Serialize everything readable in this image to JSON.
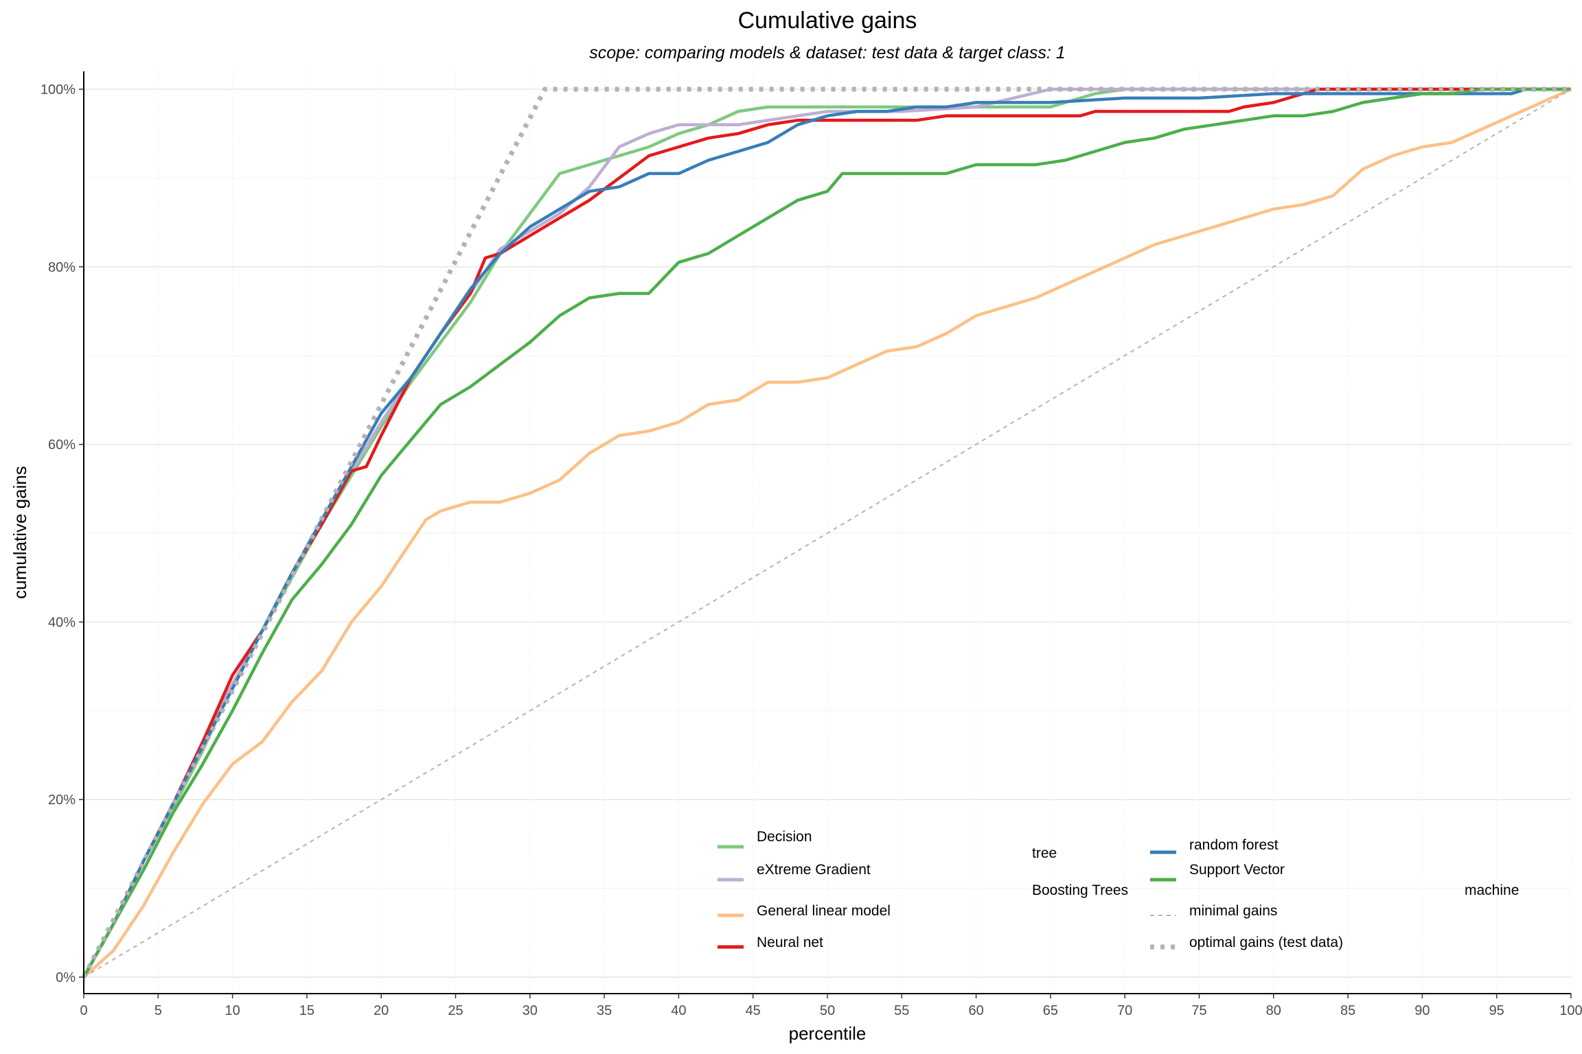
{
  "chart_data": {
    "type": "line",
    "title": "Cumulative gains",
    "subtitle": "scope: comparing models & dataset: test data & target class: 1",
    "xlabel": "percentile",
    "ylabel": "cumulative gains",
    "xlim": [
      0,
      100
    ],
    "ylim": [
      0,
      1
    ],
    "x_ticks": [
      0,
      5,
      10,
      15,
      20,
      25,
      30,
      35,
      40,
      45,
      50,
      55,
      60,
      65,
      70,
      75,
      80,
      85,
      90,
      95,
      100
    ],
    "x_tick_labels": [
      "0",
      "5",
      "10",
      "15",
      "20",
      "25",
      "30",
      "35",
      "40",
      "45",
      "50",
      "55",
      "60",
      "65",
      "70",
      "75",
      "80",
      "85",
      "90",
      "95",
      "100"
    ],
    "y_ticks": [
      0,
      0.2,
      0.4,
      0.6,
      0.8,
      1.0
    ],
    "y_tick_labels": [
      "0%",
      "20%",
      "40%",
      "60%",
      "80%",
      "100%"
    ],
    "grid": true,
    "legend_position": "bottom-right inside",
    "legend_text": [
      {
        "text": "Decision",
        "col": 0,
        "row": 0
      },
      {
        "text": "tree",
        "col": 1,
        "row": 0.5
      },
      {
        "text": "eXtreme Gradient",
        "col": 0,
        "row": 1
      },
      {
        "text": "Boosting Trees",
        "col": 1,
        "row": 1.5
      },
      {
        "text": "General linear model",
        "col": 0,
        "row": 2
      },
      {
        "text": "Neural net",
        "col": 0,
        "row": 3
      },
      {
        "text": "random forest",
        "col": 2,
        "row": 0.25
      },
      {
        "text": "Support Vector",
        "col": 2,
        "row": 1
      },
      {
        "text": "machine",
        "col": 3,
        "row": 1.5
      },
      {
        "text": "minimal gains",
        "col": 2,
        "row": 2
      },
      {
        "text": "optimal gains (test data)",
        "col": 2,
        "row": 3
      }
    ],
    "series": [
      {
        "name": "Decision tree",
        "color": "#7fc97f",
        "style": "solid",
        "x": [
          0,
          2,
          4,
          6,
          8,
          10,
          12,
          14,
          16,
          18,
          20,
          22,
          24,
          26,
          28,
          30,
          32,
          34,
          36,
          38,
          40,
          42,
          44,
          46,
          48,
          50,
          55,
          60,
          65,
          68,
          70,
          75,
          80,
          85,
          90,
          95,
          100
        ],
        "y": [
          0,
          0.06,
          0.13,
          0.19,
          0.255,
          0.33,
          0.39,
          0.45,
          0.51,
          0.565,
          0.62,
          0.67,
          0.715,
          0.76,
          0.815,
          0.86,
          0.905,
          0.915,
          0.925,
          0.935,
          0.95,
          0.96,
          0.975,
          0.98,
          0.98,
          0.98,
          0.98,
          0.98,
          0.98,
          0.995,
          1,
          1,
          1,
          1,
          1,
          1,
          1
        ]
      },
      {
        "name": "eXtreme Gradient Boosting Trees",
        "color": "#beaed4",
        "style": "solid",
        "x": [
          0,
          2,
          4,
          6,
          8,
          10,
          12,
          14,
          16,
          18,
          20,
          22,
          24,
          26,
          28,
          30,
          32,
          34,
          36,
          38,
          40,
          42,
          44,
          46,
          48,
          50,
          55,
          60,
          65,
          70,
          75,
          80,
          85,
          90,
          95,
          100
        ],
        "y": [
          0,
          0.06,
          0.13,
          0.195,
          0.265,
          0.33,
          0.39,
          0.455,
          0.51,
          0.57,
          0.625,
          0.675,
          0.725,
          0.77,
          0.82,
          0.84,
          0.86,
          0.89,
          0.935,
          0.95,
          0.96,
          0.96,
          0.96,
          0.965,
          0.97,
          0.975,
          0.975,
          0.98,
          1,
          1,
          1,
          1,
          1,
          1,
          1,
          1
        ]
      },
      {
        "name": "General linear model",
        "color": "#fdc086",
        "style": "solid",
        "x": [
          0,
          2,
          4,
          6,
          8,
          10,
          12,
          14,
          16,
          18,
          20,
          22,
          23,
          24,
          25,
          26,
          28,
          30,
          32,
          34,
          36,
          38,
          40,
          42,
          44,
          46,
          48,
          50,
          52,
          54,
          56,
          58,
          60,
          62,
          64,
          66,
          68,
          70,
          72,
          74,
          76,
          78,
          80,
          82,
          84,
          86,
          88,
          90,
          92,
          94,
          96,
          98,
          100
        ],
        "y": [
          0,
          0.03,
          0.08,
          0.14,
          0.195,
          0.24,
          0.265,
          0.31,
          0.345,
          0.4,
          0.44,
          0.49,
          0.515,
          0.525,
          0.53,
          0.535,
          0.535,
          0.545,
          0.56,
          0.59,
          0.61,
          0.615,
          0.625,
          0.645,
          0.65,
          0.67,
          0.67,
          0.675,
          0.69,
          0.705,
          0.71,
          0.725,
          0.745,
          0.755,
          0.765,
          0.78,
          0.795,
          0.81,
          0.825,
          0.835,
          0.845,
          0.855,
          0.865,
          0.87,
          0.88,
          0.91,
          0.925,
          0.935,
          0.94,
          0.955,
          0.97,
          0.985,
          1
        ]
      },
      {
        "name": "Neural net",
        "color": "#e31a1c",
        "style": "solid",
        "x": [
          0,
          2,
          4,
          6,
          8,
          10,
          12,
          14,
          16,
          18,
          19,
          20,
          22,
          24,
          26,
          27,
          28,
          30,
          32,
          34,
          36,
          38,
          40,
          42,
          44,
          46,
          48,
          50,
          52,
          54,
          56,
          58,
          60,
          65,
          67,
          68,
          70,
          75,
          77,
          78,
          80,
          82,
          83,
          90,
          100
        ],
        "y": [
          0,
          0.06,
          0.13,
          0.195,
          0.265,
          0.34,
          0.39,
          0.455,
          0.51,
          0.57,
          0.575,
          0.61,
          0.675,
          0.725,
          0.77,
          0.81,
          0.815,
          0.835,
          0.855,
          0.875,
          0.9,
          0.925,
          0.935,
          0.945,
          0.95,
          0.96,
          0.965,
          0.965,
          0.965,
          0.965,
          0.965,
          0.97,
          0.97,
          0.97,
          0.97,
          0.975,
          0.975,
          0.975,
          0.975,
          0.98,
          0.985,
          0.995,
          1,
          1,
          1
        ]
      },
      {
        "name": "random forest",
        "color": "#377eb8",
        "style": "solid",
        "x": [
          0,
          2,
          4,
          6,
          8,
          10,
          12,
          14,
          16,
          18,
          20,
          22,
          24,
          26,
          28,
          30,
          32,
          34,
          36,
          38,
          40,
          42,
          44,
          46,
          48,
          50,
          52,
          54,
          56,
          58,
          60,
          65,
          70,
          75,
          80,
          85,
          90,
          95,
          96,
          97,
          100
        ],
        "y": [
          0,
          0.06,
          0.13,
          0.195,
          0.26,
          0.325,
          0.39,
          0.455,
          0.515,
          0.575,
          0.635,
          0.675,
          0.725,
          0.775,
          0.815,
          0.845,
          0.865,
          0.885,
          0.89,
          0.905,
          0.905,
          0.92,
          0.93,
          0.94,
          0.96,
          0.97,
          0.975,
          0.975,
          0.98,
          0.98,
          0.985,
          0.985,
          0.99,
          0.99,
          0.995,
          0.995,
          0.995,
          0.995,
          0.995,
          1,
          1
        ]
      },
      {
        "name": "Support Vector machine",
        "color": "#4daf4a",
        "style": "solid",
        "x": [
          0,
          2,
          4,
          6,
          8,
          10,
          12,
          14,
          16,
          18,
          20,
          22,
          24,
          26,
          28,
          30,
          32,
          34,
          36,
          38,
          40,
          42,
          44,
          46,
          48,
          50,
          51,
          52,
          55,
          58,
          60,
          62,
          64,
          66,
          68,
          70,
          72,
          74,
          76,
          78,
          80,
          82,
          84,
          86,
          88,
          90,
          92,
          94,
          96,
          98,
          100
        ],
        "y": [
          0,
          0.06,
          0.12,
          0.185,
          0.24,
          0.3,
          0.365,
          0.425,
          0.465,
          0.51,
          0.565,
          0.605,
          0.645,
          0.665,
          0.69,
          0.715,
          0.745,
          0.765,
          0.77,
          0.77,
          0.805,
          0.815,
          0.835,
          0.855,
          0.875,
          0.885,
          0.905,
          0.905,
          0.905,
          0.905,
          0.915,
          0.915,
          0.915,
          0.92,
          0.93,
          0.94,
          0.945,
          0.955,
          0.96,
          0.965,
          0.97,
          0.97,
          0.975,
          0.985,
          0.99,
          0.995,
          0.995,
          1,
          1,
          1,
          1
        ]
      },
      {
        "name": "minimal gains",
        "color": "#b3b3b3",
        "style": "dashed",
        "x": [
          0,
          100
        ],
        "y": [
          0,
          1
        ]
      },
      {
        "name": "optimal gains (test data)",
        "color": "#b3b3b3",
        "style": "dotted",
        "x": [
          0,
          31,
          100
        ],
        "y": [
          0,
          1,
          1
        ]
      }
    ]
  }
}
